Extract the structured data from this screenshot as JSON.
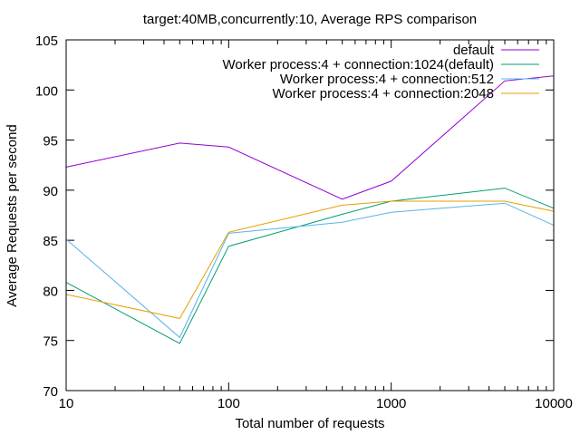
{
  "chart_data": {
    "type": "line",
    "title": "target:40MB,concurrently:10, Average RPS comparison",
    "xlabel": "Total number of requests",
    "ylabel": "Average Requests per second",
    "xscale": "log",
    "xlim": [
      10,
      10000
    ],
    "ylim": [
      70,
      105
    ],
    "x_ticks": [
      10,
      100,
      1000,
      10000
    ],
    "x_tick_labels": [
      "10",
      "100",
      "1000",
      "10000"
    ],
    "y_ticks": [
      70,
      75,
      80,
      85,
      90,
      95,
      100,
      105
    ],
    "y_tick_labels": [
      "70",
      "75",
      "80",
      "85",
      "90",
      "95",
      "100",
      "105"
    ],
    "grid": false,
    "legend_position": "top-right",
    "x": [
      10,
      50,
      100,
      500,
      1000,
      5000,
      10000
    ],
    "series": [
      {
        "name": "default",
        "color": "#9400d3",
        "values": [
          92.3,
          94.7,
          94.3,
          89.1,
          90.9,
          100.9,
          101.4
        ]
      },
      {
        "name": "Worker process:4 + connection:1024(default)",
        "color": "#009e73",
        "values": [
          80.8,
          74.7,
          84.4,
          87.6,
          88.9,
          90.2,
          88.2
        ]
      },
      {
        "name": "Worker process:4 + connection:512",
        "color": "#56b4e9",
        "values": [
          85.1,
          75.3,
          85.7,
          86.8,
          87.8,
          88.7,
          86.5
        ]
      },
      {
        "name": "Worker process:4 + connection:2048",
        "color": "#e69f00",
        "values": [
          79.6,
          77.2,
          85.8,
          88.5,
          88.9,
          88.9,
          87.9
        ]
      }
    ]
  }
}
